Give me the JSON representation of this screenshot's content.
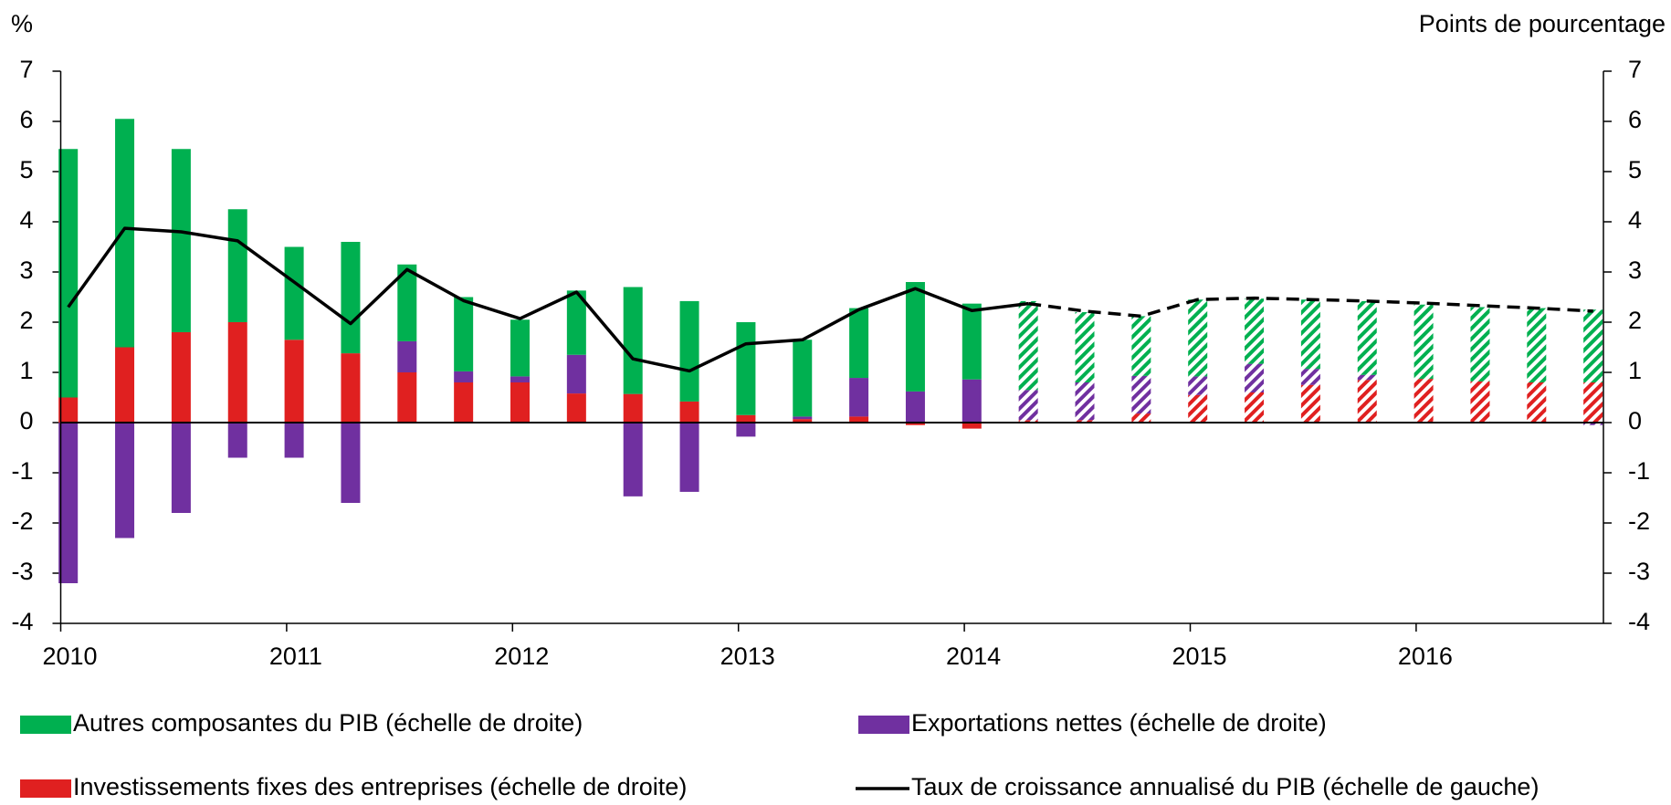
{
  "chart_data": {
    "type": "bar",
    "ylabel": "%",
    "y2label": "Points de pourcentage",
    "categories": [
      "2010",
      null,
      null,
      null,
      "2011",
      null,
      null,
      null,
      "2012",
      null,
      null,
      null,
      "2013",
      null,
      null,
      null,
      "2014",
      null,
      null,
      null,
      "2015",
      null,
      null,
      null,
      "2016",
      null,
      null,
      null
    ],
    "ylim": [
      -4,
      7
    ],
    "yticks": [
      -4,
      -3,
      -2,
      -1,
      0,
      1,
      2,
      3,
      4,
      5,
      6,
      7
    ],
    "y2lim": [
      -4,
      7
    ],
    "y2ticks": [
      -4,
      -3,
      -2,
      -1,
      0,
      1,
      2,
      3,
      4,
      5,
      6,
      7
    ],
    "hatched_from": 17,
    "series": [
      {
        "name": "Autres composantes du PIB (échelle de droite)",
        "color": "#00b050",
        "type": "bar",
        "axis": "y2",
        "values": [
          4.95,
          4.55,
          3.65,
          2.25,
          1.85,
          2.22,
          1.53,
          1.48,
          1.13,
          1.28,
          2.13,
          2.0,
          1.85,
          1.53,
          1.39,
          2.18,
          1.51,
          1.77,
          1.4,
          1.19,
          1.53,
          1.3,
          1.38,
          1.47,
          1.48,
          1.48,
          1.48,
          1.45
        ]
      },
      {
        "name": "Exportations nettes (échelle de droite)",
        "color": "#7030a0",
        "type": "bar",
        "axis": "y2",
        "values": [
          -3.2,
          -2.3,
          -1.8,
          -0.7,
          -0.7,
          -1.6,
          0.62,
          0.22,
          0.12,
          0.77,
          -1.47,
          -1.38,
          -0.28,
          0.05,
          0.77,
          0.62,
          0.86,
          0.6,
          0.75,
          0.75,
          0.37,
          0.57,
          0.32,
          0.1,
          0,
          0,
          0,
          -0.05
        ]
      },
      {
        "name": "Investissements fixes des entreprises (échelle de droite)",
        "color": "#e02020",
        "type": "bar",
        "axis": "y2",
        "values": [
          0.5,
          1.5,
          1.8,
          2.0,
          1.65,
          1.38,
          1.0,
          0.8,
          0.8,
          0.58,
          0.57,
          0.42,
          0.15,
          0.07,
          0.12,
          -0.05,
          -0.12,
          0.05,
          0.05,
          0.18,
          0.55,
          0.6,
          0.75,
          0.85,
          0.87,
          0.82,
          0.8,
          0.8
        ]
      },
      {
        "name": "Taux de croissance annualisé du PIB (échelle de gauche)",
        "color": "#000000",
        "type": "line",
        "axis": "y",
        "values": [
          2.3,
          3.87,
          3.8,
          3.62,
          2.8,
          1.97,
          3.05,
          2.43,
          2.07,
          2.6,
          1.27,
          1.03,
          1.57,
          1.65,
          2.25,
          2.67,
          2.23,
          2.37,
          2.22,
          2.12,
          2.45,
          2.48,
          2.45,
          2.42,
          2.38,
          2.33,
          2.28,
          2.22
        ]
      }
    ]
  }
}
